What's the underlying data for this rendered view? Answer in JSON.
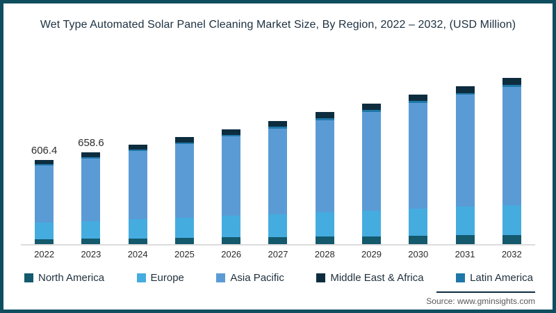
{
  "title": "Wet Type Automated Solar Panel Cleaning Market Size, By Region, 2022 – 2032, (USD Million)",
  "source": {
    "label": "Source: www.gminsights.com"
  },
  "colors": {
    "frame_border": "#0f4e5f",
    "axis_line": "#dcdcdc",
    "title_text": "#1c3040",
    "data_label_text": "#2d2d2d",
    "tick_text": "#2a2a2a",
    "legend_text": "#1e2f3c",
    "source_text": "#595959",
    "source_rule": "#0d2d3f"
  },
  "chart_data": {
    "type": "bar",
    "stacked": true,
    "title": "Wet Type Automated Solar Panel Cleaning Market Size, By Region, 2022 – 2032, (USD Million)",
    "xlabel": "",
    "ylabel": "",
    "grid": false,
    "legend_position": "bottom",
    "ylim": [
      0,
      1280
    ],
    "categories": [
      "2022",
      "2023",
      "2024",
      "2025",
      "2026",
      "2027",
      "2028",
      "2029",
      "2030",
      "2031",
      "2032"
    ],
    "series": [
      {
        "name": "North America",
        "color": "#14596c",
        "values": [
          36.4,
          39.2,
          42.2,
          45.1,
          47.9,
          50.9,
          54.0,
          56.9,
          60.1,
          62.9,
          65.7
        ]
      },
      {
        "name": "Europe",
        "color": "#45ace0",
        "values": [
          118.2,
          127.4,
          137.5,
          146.8,
          156.1,
          166.0,
          175.9,
          185.4,
          195.8,
          204.9,
          215.1
        ]
      },
      {
        "name": "Asia Pacific",
        "color": "#5b9bd5",
        "values": [
          409.3,
          446.9,
          488.3,
          528.7,
          570.3,
          615.2,
          661.5,
          707.4,
          758.4,
          805.1,
          848.5
        ]
      },
      {
        "name": "Middle East & Africa",
        "color": "#0d2d3f",
        "values": [
          33.4,
          35.4,
          37.5,
          39.4,
          41.2,
          42.9,
          44.2,
          45.4,
          46.4,
          47.4,
          50.2
        ]
      },
      {
        "name": "Latin America",
        "color": "#1f77a8",
        "values": [
          9.1,
          9.7,
          10.5,
          11.0,
          11.5,
          12.0,
          12.4,
          12.9,
          13.3,
          13.7,
          15.5
        ]
      }
    ],
    "stack_order": [
      "North America",
      "Europe",
      "Asia Pacific",
      "Latin America",
      "Middle East & Africa"
    ],
    "totals": [
      606.4,
      658.6,
      716,
      771,
      827,
      887,
      948,
      1008,
      1074,
      1134,
      1195
    ],
    "data_labels": {
      "2022": "606.4",
      "2023": "658.6"
    }
  }
}
